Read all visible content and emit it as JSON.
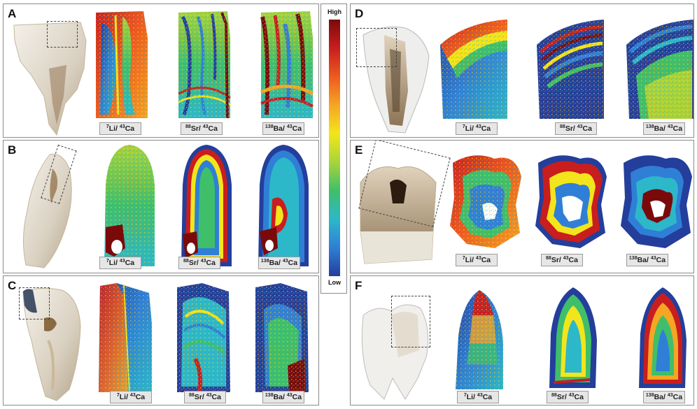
{
  "colorbar": {
    "high": "High",
    "low": "Low"
  },
  "labels": {
    "li": {
      "mass": "7",
      "el": "Li/ ",
      "mass2": "43",
      "el2": "Ca"
    },
    "sr": {
      "mass": "88",
      "el": "Sr/ ",
      "mass2": "43",
      "el2": "Ca"
    },
    "ba": {
      "mass": "138",
      "el": "Ba/ ",
      "mass2": "43",
      "el2": "Ca"
    }
  },
  "panels": [
    {
      "letter": "A"
    },
    {
      "letter": "B"
    },
    {
      "letter": "C"
    },
    {
      "letter": "D"
    },
    {
      "letter": "E"
    },
    {
      "letter": "F"
    }
  ],
  "colors": {
    "high": "#7a0a0a",
    "red": "#c81e1e",
    "orange": "#ee5a1e",
    "yellow": "#f3e51c",
    "green": "#3fbf6a",
    "cyan": "#2cb8c9",
    "blue": "#2f7fd6",
    "low": "#243e9b"
  }
}
